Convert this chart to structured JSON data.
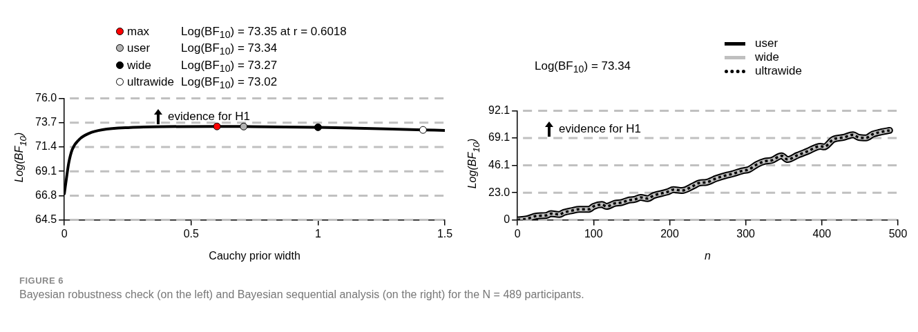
{
  "chart_data": [
    {
      "type": "line",
      "xlabel": "Cauchy prior width",
      "ylabel": "Log(BF$_{10}$)",
      "xlim": [
        0,
        1.5
      ],
      "xticks": [
        0,
        0.5,
        1,
        1.5
      ],
      "ylim": [
        64.5,
        76
      ],
      "yticks": [
        64.5,
        66.8,
        69.1,
        71.4,
        73.7,
        {
          "value": 76,
          "label": "76.0"
        }
      ],
      "grid": "y",
      "legend": "top left",
      "annotations": [
        "Log(BF$_{10}$) = 73.35 at r = 0.6018",
        "Log(BF$_{10}$) = 73.34",
        "Log(BF$_{10}$) = 73.27",
        "Log(BF$_{10}$) = 73.02",
        "evidence for H1"
      ],
      "series": [
        {
          "type": "line",
          "color": "#000000",
          "x": [
            0,
            0.011,
            0.0175,
            0.031,
            0.058,
            0.098,
            0.15,
            0.26,
            0.39,
            0.6018,
            0.707,
            1,
            1.414,
            1.5
          ],
          "values": [
            66.97,
            68.9,
            69.9,
            71.15,
            72.1,
            72.7,
            73.03,
            73.25,
            73.33,
            73.35,
            73.34,
            73.27,
            73.02,
            72.97
          ]
        },
        {
          "type": "scatter",
          "name": "max",
          "color": "#ff0000",
          "marker": "circle",
          "x": [
            0.6018
          ],
          "values": [
            73.35
          ]
        },
        {
          "type": "scatter",
          "name": "user",
          "color": "#b3b3b3",
          "marker": "circle",
          "x": [
            0.707
          ],
          "values": [
            73.34
          ]
        },
        {
          "type": "scatter",
          "name": "wide",
          "color": "#000000",
          "marker": "circle",
          "x": [
            1
          ],
          "values": [
            73.27
          ]
        },
        {
          "type": "scatter",
          "name": "ultrawide",
          "color": "#ffffff",
          "marker": "circle",
          "x": [
            1.414
          ],
          "values": [
            73.02
          ]
        }
      ]
    },
    {
      "type": "line",
      "xlabel": "n",
      "ylabel": "Log(BF$_{10}$)",
      "xlim": [
        0,
        500
      ],
      "xticks": [
        0,
        100,
        200,
        300,
        400,
        500
      ],
      "ylim": [
        0,
        92.1
      ],
      "yticks": [
        0,
        {
          "value": 23,
          "label": "23.0"
        },
        46.1,
        69.1,
        92.1
      ],
      "grid": "y",
      "legend": "top right",
      "annotations": [
        "Log(BF$_{10}$) = 73.34",
        "evidence for H1",
        "FIGURE 6",
        "Bayesian robustness check (on the left) and Bayesian sequential analysis (on the right) for the N = 489 participants."
      ],
      "x": [
        0,
        12,
        25,
        38,
        44,
        55,
        61,
        72,
        81,
        94,
        100,
        111,
        117,
        128,
        137,
        145,
        154,
        162,
        171,
        179,
        197,
        205,
        216,
        231,
        239,
        248,
        261,
        274,
        282,
        295,
        304,
        315,
        325,
        334,
        347,
        355,
        368,
        381,
        398,
        403,
        415,
        429,
        441,
        448,
        458,
        467,
        479,
        489
      ],
      "series": [
        {
          "name": "user",
          "color": "#000000",
          "values": [
            0,
            0.8,
            3.3,
            3.8,
            5.3,
            4.6,
            6.3,
            7.9,
            9.0,
            9.0,
            11.4,
            13,
            11.4,
            14,
            14.7,
            16.5,
            17.3,
            19,
            18,
            20.6,
            23.6,
            25.6,
            24.8,
            28.7,
            31.2,
            31.7,
            35,
            37.6,
            38.8,
            41.4,
            42.6,
            47,
            49.5,
            50.3,
            54.1,
            51,
            54.6,
            57.9,
            62.2,
            61.7,
            68,
            69.8,
            71.9,
            69.8,
            69.3,
            72.4,
            74.4,
            75.6
          ]
        },
        {
          "name": "wide",
          "color": "#bfbfbf",
          "values": [
            0,
            0.8,
            3.3,
            3.8,
            5.3,
            4.6,
            6.3,
            7.9,
            9.0,
            9.0,
            11.4,
            13,
            11.4,
            14,
            14.7,
            16.5,
            17.3,
            19,
            18,
            20.6,
            23.6,
            25.6,
            24.8,
            28.7,
            31.2,
            31.7,
            35,
            37.6,
            38.8,
            41.4,
            42.6,
            47,
            49.5,
            50.3,
            54.1,
            51,
            54.6,
            57.9,
            62.2,
            61.7,
            68,
            69.8,
            71.9,
            69.8,
            69.3,
            72.4,
            74.4,
            75.6
          ]
        },
        {
          "name": "ultrawide",
          "color": "#000000",
          "line_style": "dotted",
          "values": [
            0,
            0.8,
            3.3,
            3.8,
            5.3,
            4.6,
            6.3,
            7.9,
            9.0,
            9.0,
            11.4,
            13,
            11.4,
            14,
            14.7,
            16.5,
            17.3,
            19,
            18,
            20.6,
            23.6,
            25.6,
            24.8,
            28.7,
            31.2,
            31.7,
            35,
            37.6,
            38.8,
            41.4,
            42.6,
            47,
            49.5,
            50.3,
            54.1,
            51,
            54.6,
            57.9,
            62.2,
            61.7,
            68,
            69.8,
            71.9,
            69.8,
            69.3,
            72.4,
            74.4,
            75.6
          ]
        }
      ]
    }
  ]
}
